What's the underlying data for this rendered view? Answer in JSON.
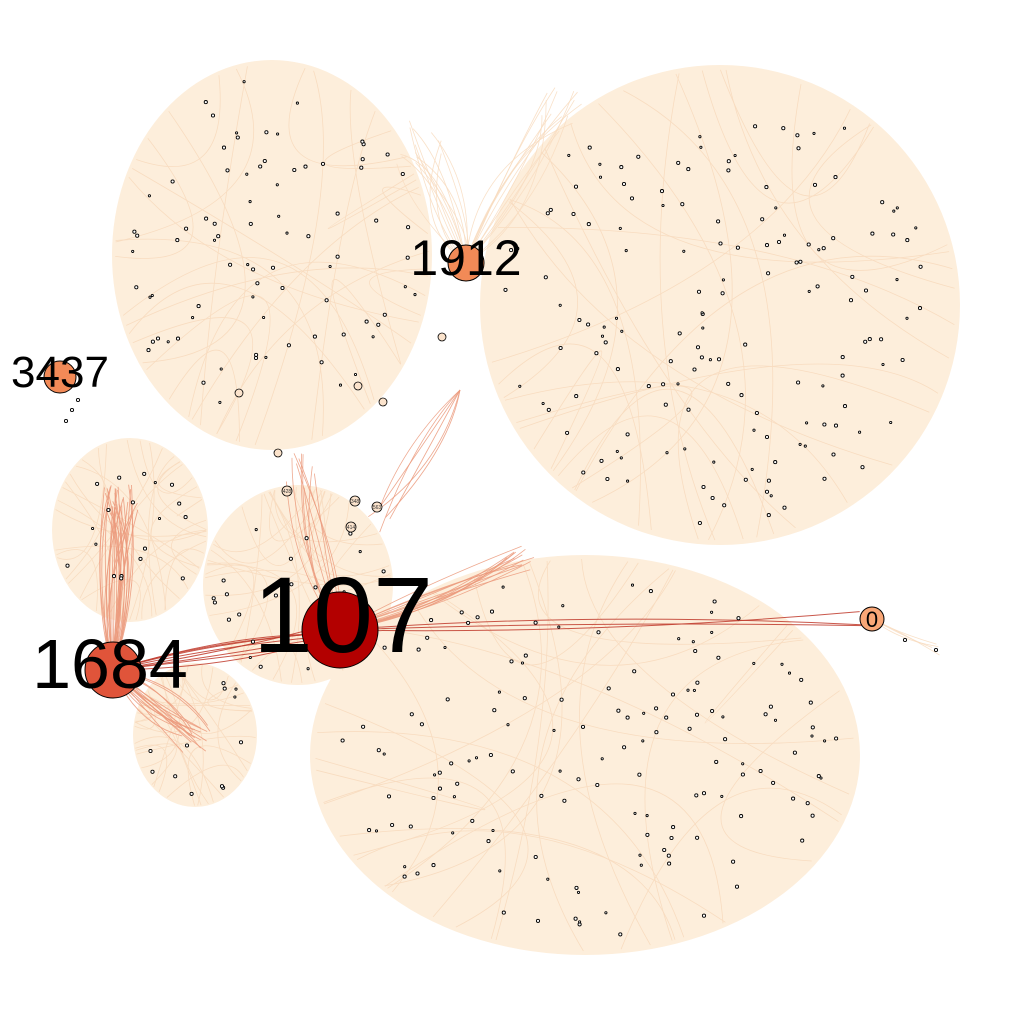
{
  "colors": {
    "background": "#ffffff",
    "cluster_fill": "#fdeedb",
    "edge_light": "#f8dcc0",
    "edge_mid": "#eb9a7c",
    "edge_dark": "#c0392b",
    "node_stroke": "#000000",
    "hub_107": "#b30000",
    "hub_1684": "#e0543a",
    "hub_1912": "#f28a57",
    "hub_3437": "#f28a57",
    "hub_0": "#f9a777",
    "minor_node": "#fbe3cc"
  },
  "hubs": [
    {
      "id": "107",
      "label": "107",
      "color_key": "hub_107"
    },
    {
      "id": "1684",
      "label": "1684",
      "color_key": "hub_1684"
    },
    {
      "id": "1912",
      "label": "1912",
      "color_key": "hub_1912"
    },
    {
      "id": "3437",
      "label": "3437",
      "color_key": "hub_3437"
    },
    {
      "id": "0",
      "label": "0",
      "color_key": "hub_0"
    }
  ],
  "minor_labels": [
    "348",
    "563",
    "414",
    "428"
  ]
}
